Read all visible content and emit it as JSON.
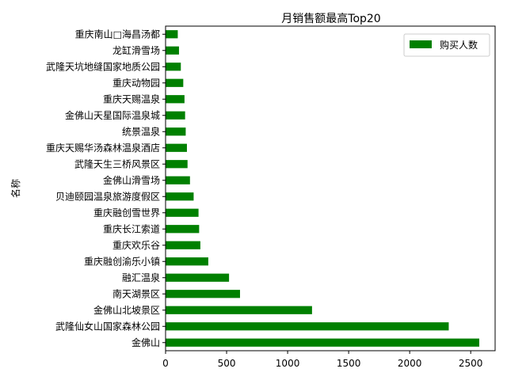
{
  "chart_data": {
    "type": "bar",
    "orientation": "horizontal",
    "title": "月销售额最高Top20",
    "xlabel": "",
    "ylabel": "名称",
    "xlim": [
      0,
      2700
    ],
    "xticks": [
      0,
      500,
      1000,
      1500,
      2000,
      2500
    ],
    "grid": false,
    "legend": "top-right",
    "color": "#008000",
    "categories": [
      "金佛山",
      "武隆仙女山国家森林公园",
      "金佛山北坡景区",
      "南天湖景区",
      "融汇温泉",
      "重庆融创渝乐小镇",
      "重庆欢乐谷",
      "重庆长江索道",
      "重庆融创雪世界",
      "贝迪颐园温泉旅游度假区",
      "金佛山滑雪场",
      "武隆天生三桥风景区",
      "重庆天赐华汤森林温泉酒店",
      "统景温泉",
      "金佛山天星国际温泉城",
      "重庆天赐温泉",
      "重庆动物园",
      "武隆天坑地缝国家地质公园",
      "龙缸滑雪场",
      "重庆南山□海昌汤都"
    ],
    "series": [
      {
        "name": "购买人数",
        "values": [
          2570,
          2320,
          1200,
          610,
          520,
          350,
          285,
          275,
          270,
          230,
          200,
          180,
          175,
          165,
          160,
          155,
          145,
          125,
          110,
          100
        ]
      }
    ]
  }
}
